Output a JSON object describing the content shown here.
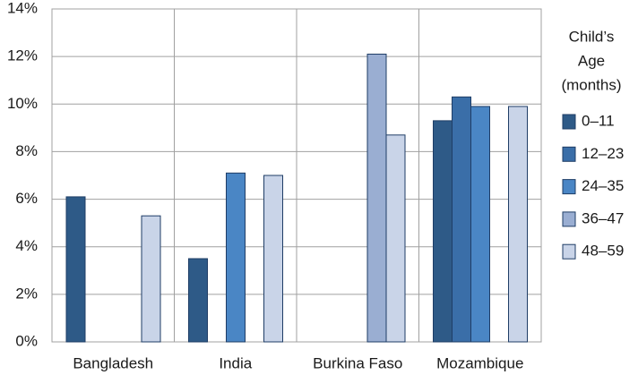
{
  "chart_data": {
    "type": "bar",
    "categories": [
      "Bangladesh",
      "India",
      "Burkina Faso",
      "Mozambique"
    ],
    "series": [
      {
        "name": "0–11",
        "color": "#2e5a87",
        "values": [
          6.1,
          3.5,
          null,
          9.3
        ]
      },
      {
        "name": "12–23",
        "color": "#3a6ea8",
        "values": [
          null,
          null,
          null,
          10.3
        ]
      },
      {
        "name": "24–35",
        "color": "#4a86c5",
        "values": [
          null,
          7.1,
          null,
          9.9
        ]
      },
      {
        "name": "36–47",
        "color": "#9aaed2",
        "values": [
          null,
          null,
          12.1,
          null
        ]
      },
      {
        "name": "48–59",
        "color": "#c9d4e8",
        "values": [
          5.3,
          7.0,
          8.7,
          9.9
        ]
      }
    ],
    "legend_title": [
      "Child’s",
      "Age",
      "(months)"
    ],
    "ylim": [
      0,
      14
    ],
    "yticks": [
      {
        "value": 0,
        "label": "0%"
      },
      {
        "value": 2,
        "label": "2%"
      },
      {
        "value": 4,
        "label": "4%"
      },
      {
        "value": 6,
        "label": "6%"
      },
      {
        "value": 8,
        "label": "8%"
      },
      {
        "value": 10,
        "label": "10%"
      },
      {
        "value": 12,
        "label": "12%"
      },
      {
        "value": 14,
        "label": "14%"
      }
    ],
    "grid": true,
    "legend": "right"
  }
}
